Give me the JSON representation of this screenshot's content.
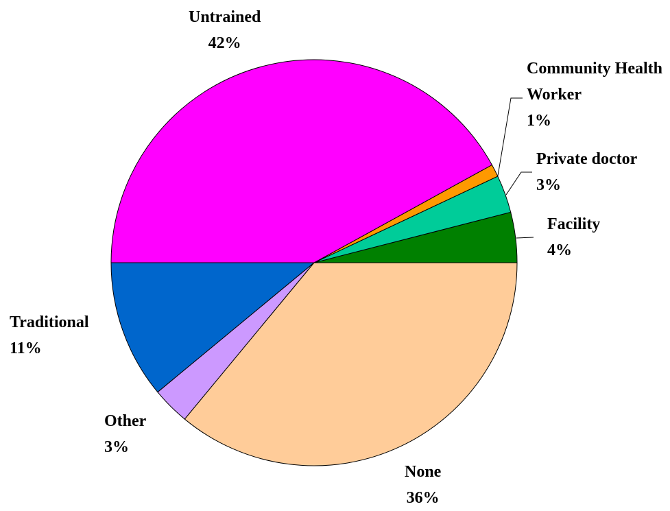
{
  "chart_data": {
    "type": "pie",
    "categories": [
      "Facility",
      "Private doctor",
      "Community Health Worker",
      "Untrained",
      "Traditional",
      "Other",
      "None"
    ],
    "values": [
      4,
      3,
      1,
      42,
      11,
      3,
      36
    ],
    "value_labels": [
      "4%",
      "3%",
      "1%",
      "42%",
      "11%",
      "3%",
      "36%"
    ],
    "colors": [
      "#008000",
      "#00CC99",
      "#FF9900",
      "#FF00FF",
      "#0066CC",
      "#CC99FF",
      "#FFCC99"
    ]
  }
}
